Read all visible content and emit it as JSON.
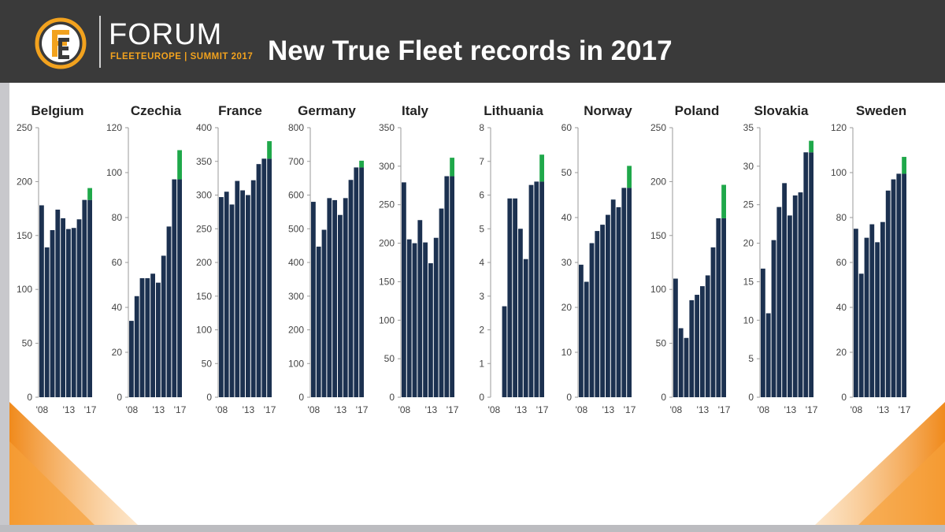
{
  "header": {
    "logo_word": "FORUM",
    "logo_sub": "FLEETEUROPE | SUMMIT 2017",
    "title": "New True Fleet records in 2017",
    "colors": {
      "header_bg": "#3a3a3a",
      "logo_accent": "#f2a21e",
      "bar": "#1c3150",
      "record": "#1fa84a"
    }
  },
  "chart_data": [
    {
      "type": "bar",
      "title": "Belgium",
      "ylim": [
        0,
        250
      ],
      "yticks": [
        0,
        50,
        100,
        150,
        200,
        250
      ],
      "xticks": [
        "'08",
        "'13",
        "'17"
      ],
      "categories": [
        "2008",
        "2009",
        "2010",
        "2011",
        "2012",
        "2013",
        "2014",
        "2015",
        "2016",
        "2017"
      ],
      "values": [
        178,
        139,
        155,
        174,
        166,
        156,
        157,
        165,
        183,
        183
      ],
      "record_increment": [
        0,
        0,
        0,
        0,
        0,
        0,
        0,
        0,
        0,
        11
      ]
    },
    {
      "type": "bar",
      "title": "Czechia",
      "ylim": [
        0,
        120
      ],
      "yticks": [
        0,
        20,
        40,
        60,
        80,
        100,
        120
      ],
      "xticks": [
        "'08",
        "'13",
        "'17"
      ],
      "categories": [
        "2008",
        "2009",
        "2010",
        "2011",
        "2012",
        "2013",
        "2014",
        "2015",
        "2016",
        "2017"
      ],
      "values": [
        34,
        45,
        53,
        53,
        55,
        51,
        63,
        76,
        97,
        97
      ],
      "record_increment": [
        0,
        0,
        0,
        0,
        0,
        0,
        0,
        0,
        0,
        13
      ]
    },
    {
      "type": "bar",
      "title": "France",
      "ylim": [
        0,
        400
      ],
      "yticks": [
        0,
        50,
        100,
        150,
        200,
        250,
        300,
        350,
        400
      ],
      "xticks": [
        "'08",
        "'13",
        "'17"
      ],
      "categories": [
        "2008",
        "2009",
        "2010",
        "2011",
        "2012",
        "2013",
        "2014",
        "2015",
        "2016",
        "2017"
      ],
      "values": [
        297,
        305,
        286,
        321,
        307,
        300,
        322,
        346,
        354,
        354
      ],
      "record_increment": [
        0,
        0,
        0,
        0,
        0,
        0,
        0,
        0,
        0,
        26
      ]
    },
    {
      "type": "bar",
      "title": "Germany",
      "ylim": [
        0,
        800
      ],
      "yticks": [
        0,
        100,
        200,
        300,
        400,
        500,
        600,
        700,
        800
      ],
      "xticks": [
        "'08",
        "'13",
        "'17"
      ],
      "categories": [
        "2008",
        "2009",
        "2010",
        "2011",
        "2012",
        "2013",
        "2014",
        "2015",
        "2016",
        "2017"
      ],
      "values": [
        580,
        447,
        497,
        591,
        585,
        541,
        591,
        645,
        682,
        682
      ],
      "record_increment": [
        0,
        0,
        0,
        0,
        0,
        0,
        0,
        0,
        0,
        20
      ]
    },
    {
      "type": "bar",
      "title": "Italy",
      "ylim": [
        0,
        350
      ],
      "yticks": [
        0,
        50,
        100,
        150,
        200,
        250,
        300,
        350
      ],
      "xticks": [
        "'08",
        "'13",
        "'17"
      ],
      "categories": [
        "2008",
        "2009",
        "2010",
        "2011",
        "2012",
        "2013",
        "2014",
        "2015",
        "2016",
        "2017"
      ],
      "values": [
        279,
        205,
        200,
        230,
        201,
        174,
        207,
        245,
        287,
        287
      ],
      "record_increment": [
        0,
        0,
        0,
        0,
        0,
        0,
        0,
        0,
        0,
        24
      ]
    },
    {
      "type": "bar",
      "title": "Lithuania",
      "ylim": [
        0,
        8
      ],
      "yticks": [
        0,
        1,
        2,
        3,
        4,
        5,
        6,
        7,
        8
      ],
      "xticks": [
        "'08",
        "'13",
        "'17"
      ],
      "categories": [
        "2008",
        "2009",
        "2010",
        "2011",
        "2012",
        "2013",
        "2014",
        "2015",
        "2016",
        "2017"
      ],
      "values": [
        0,
        0,
        2.7,
        5.9,
        5.9,
        5.0,
        4.1,
        6.3,
        6.4,
        6.4
      ],
      "record_increment": [
        0,
        0,
        0,
        0,
        0,
        0,
        0,
        0,
        0,
        0.8
      ]
    },
    {
      "type": "bar",
      "title": "Norway",
      "ylim": [
        0,
        60
      ],
      "yticks": [
        0,
        10,
        20,
        30,
        40,
        50,
        60
      ],
      "xticks": [
        "'08",
        "'13",
        "'17"
      ],
      "categories": [
        "2008",
        "2009",
        "2010",
        "2011",
        "2012",
        "2013",
        "2014",
        "2015",
        "2016",
        "2017"
      ],
      "values": [
        29.5,
        25.7,
        34.3,
        37,
        38.4,
        40.6,
        44,
        42.3,
        46.6,
        46.6
      ],
      "record_increment": [
        0,
        0,
        0,
        0,
        0,
        0,
        0,
        0,
        0,
        4.9
      ]
    },
    {
      "type": "bar",
      "title": "Poland",
      "ylim": [
        0,
        250
      ],
      "yticks": [
        0,
        50,
        100,
        150,
        200,
        250
      ],
      "xticks": [
        "'08",
        "'13",
        "'17"
      ],
      "categories": [
        "2008",
        "2009",
        "2010",
        "2011",
        "2012",
        "2013",
        "2014",
        "2015",
        "2016",
        "2017"
      ],
      "values": [
        110,
        64,
        55,
        90,
        95,
        103,
        113,
        139,
        166,
        166
      ],
      "record_increment": [
        0,
        0,
        0,
        0,
        0,
        0,
        0,
        0,
        0,
        31
      ]
    },
    {
      "type": "bar",
      "title": "Slovakia",
      "ylim": [
        0,
        35
      ],
      "yticks": [
        0,
        5,
        10,
        15,
        20,
        25,
        30,
        35
      ],
      "xticks": [
        "'08",
        "'13",
        "'17"
      ],
      "categories": [
        "2008",
        "2009",
        "2010",
        "2011",
        "2012",
        "2013",
        "2014",
        "2015",
        "2016",
        "2017"
      ],
      "values": [
        16.7,
        10.9,
        20.4,
        24.7,
        27.8,
        23.6,
        26.2,
        26.6,
        31.8,
        31.8
      ],
      "record_increment": [
        0,
        0,
        0,
        0,
        0,
        0,
        0,
        0,
        0,
        1.5
      ]
    },
    {
      "type": "bar",
      "title": "Sweden",
      "ylim": [
        0,
        120
      ],
      "yticks": [
        0,
        20,
        40,
        60,
        80,
        100,
        120
      ],
      "xticks": [
        "'08",
        "'13",
        "'17"
      ],
      "categories": [
        "2008",
        "2009",
        "2010",
        "2011",
        "2012",
        "2013",
        "2014",
        "2015",
        "2016",
        "2017"
      ],
      "values": [
        75,
        55,
        71,
        77,
        69,
        78,
        92,
        97,
        99.5,
        99.5
      ],
      "record_increment": [
        0,
        0,
        0,
        0,
        0,
        0,
        0,
        0,
        0,
        7.5
      ]
    }
  ]
}
